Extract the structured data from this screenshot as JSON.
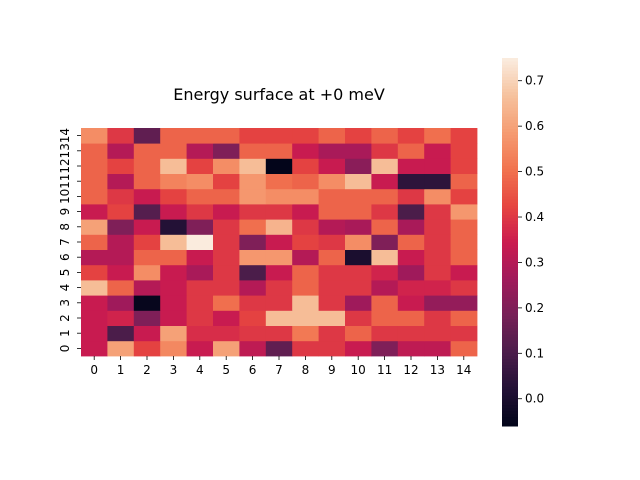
{
  "chart_data": {
    "type": "heatmap",
    "title": "Energy surface at +0 meV",
    "xlabel": "",
    "ylabel": "",
    "x_ticks": [
      "0",
      "1",
      "2",
      "3",
      "4",
      "5",
      "6",
      "7",
      "8",
      "9",
      "10",
      "11",
      "12",
      "13",
      "14"
    ],
    "y_ticks": [
      "0",
      "1",
      "2",
      "3",
      "4",
      "5",
      "6",
      "7",
      "8",
      "9",
      "10",
      "11",
      "12",
      "13",
      "14"
    ],
    "colorbar": {
      "min": -0.06,
      "max": 0.75,
      "ticks": [
        "0.0",
        "0.1",
        "0.2",
        "0.3",
        "0.4",
        "0.5",
        "0.6",
        "0.7"
      ],
      "colormap": "rocket"
    },
    "values": [
      [
        0.34,
        0.6,
        0.42,
        0.55,
        0.34,
        0.6,
        0.32,
        0.14,
        0.4,
        0.4,
        0.34,
        0.2,
        0.32,
        0.32,
        0.48
      ],
      [
        0.34,
        0.1,
        0.34,
        0.6,
        0.38,
        0.38,
        0.4,
        0.4,
        0.52,
        0.4,
        0.48,
        0.4,
        0.4,
        0.4,
        0.4
      ],
      [
        0.34,
        0.36,
        0.2,
        0.34,
        0.4,
        0.34,
        0.42,
        0.66,
        0.66,
        0.66,
        0.4,
        0.48,
        0.48,
        0.4,
        0.48
      ],
      [
        0.34,
        0.26,
        -0.05,
        0.34,
        0.4,
        0.5,
        0.4,
        0.4,
        0.66,
        0.4,
        0.26,
        0.48,
        0.34,
        0.24,
        0.24
      ],
      [
        0.66,
        0.48,
        0.3,
        0.34,
        0.4,
        0.4,
        0.3,
        0.4,
        0.48,
        0.4,
        0.4,
        0.3,
        0.36,
        0.36,
        0.4
      ],
      [
        0.42,
        0.34,
        0.56,
        0.34,
        0.28,
        0.4,
        0.1,
        0.34,
        0.48,
        0.4,
        0.4,
        0.36,
        0.26,
        0.4,
        0.34
      ],
      [
        0.3,
        0.3,
        0.48,
        0.48,
        0.34,
        0.4,
        0.58,
        0.58,
        0.3,
        0.48,
        0.0,
        0.66,
        0.34,
        0.4,
        0.48
      ],
      [
        0.48,
        0.3,
        0.42,
        0.66,
        0.76,
        0.4,
        0.2,
        0.34,
        0.42,
        0.4,
        0.56,
        0.2,
        0.48,
        0.4,
        0.48
      ],
      [
        0.6,
        0.2,
        0.34,
        0.02,
        0.2,
        0.4,
        0.5,
        0.64,
        0.4,
        0.3,
        0.28,
        0.48,
        0.28,
        0.4,
        0.48
      ],
      [
        0.34,
        0.42,
        0.12,
        0.34,
        0.4,
        0.34,
        0.4,
        0.4,
        0.34,
        0.48,
        0.48,
        0.4,
        0.1,
        0.4,
        0.58
      ],
      [
        0.48,
        0.4,
        0.34,
        0.42,
        0.48,
        0.48,
        0.58,
        0.56,
        0.56,
        0.48,
        0.48,
        0.48,
        0.4,
        0.56,
        0.42
      ],
      [
        0.48,
        0.3,
        0.48,
        0.54,
        0.56,
        0.42,
        0.58,
        0.5,
        0.48,
        0.56,
        0.66,
        0.34,
        0.04,
        0.04,
        0.48
      ],
      [
        0.48,
        0.42,
        0.48,
        0.66,
        0.42,
        0.56,
        0.66,
        -0.06,
        0.42,
        0.34,
        0.22,
        0.66,
        0.34,
        0.34,
        0.42
      ],
      [
        0.48,
        0.3,
        0.48,
        0.48,
        0.3,
        0.2,
        0.48,
        0.48,
        0.34,
        0.28,
        0.28,
        0.4,
        0.48,
        0.34,
        0.42
      ],
      [
        0.56,
        0.4,
        0.14,
        0.48,
        0.48,
        0.48,
        0.42,
        0.42,
        0.42,
        0.48,
        0.42,
        0.48,
        0.42,
        0.5,
        0.42
      ]
    ]
  }
}
